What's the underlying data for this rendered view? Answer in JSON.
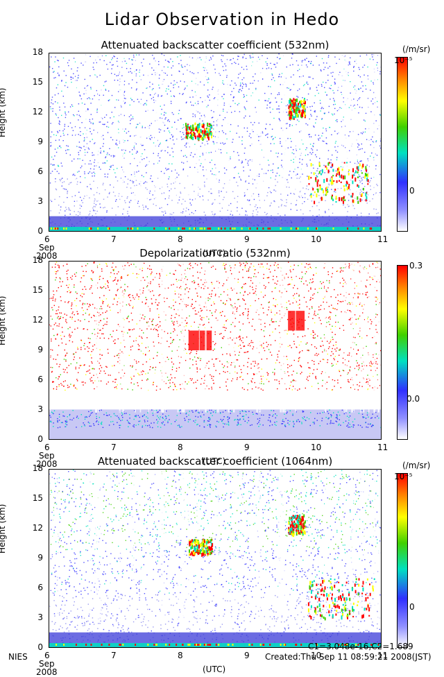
{
  "page": {
    "title": "Lidar Observation in Hedo"
  },
  "x_axis": {
    "ticks": [
      "6",
      "7",
      "8",
      "9",
      "10",
      "11"
    ],
    "start_month": "Sep",
    "start_year": "2008",
    "label": "(UTC)"
  },
  "y_axis": {
    "label": "Height (km)",
    "ticks": [
      "0",
      "3",
      "6",
      "9",
      "12",
      "15",
      "18"
    ]
  },
  "panels": [
    {
      "title": "Attenuated backscatter coefficient (532nm)",
      "cb_top": "10⁻⁵",
      "cb_bottom": "0",
      "cb_unit": "(/m/sr)"
    },
    {
      "title": "Depolarization ratio (532nm)",
      "cb_top": "0.3",
      "cb_bottom": "0.0",
      "cb_unit": ""
    },
    {
      "title": "Attenuated backscatter coefficient (1064nm)",
      "cb_top": "10⁻⁵",
      "cb_bottom": "0",
      "cb_unit": "(/m/sr)"
    }
  ],
  "footer": {
    "org": "NIES",
    "constants": "C1=3.048e-16,C2=1.689",
    "created": "Created:Thu Sep 11 08:59:21 2008(JST)"
  },
  "colors": {
    "low": "#3030ff",
    "mid": "#00e0c0",
    "green": "#40d000",
    "yellow": "#ffff00",
    "high": "#ff0000"
  },
  "chart_data": [
    {
      "type": "heatmap",
      "title": "Attenuated backscatter coefficient (532nm)",
      "ylabel": "Height (km)",
      "xlabel": "(UTC)",
      "x_range": [
        "6 Sep 2008",
        "11 Sep 2008"
      ],
      "ylim": [
        0,
        18
      ],
      "colorbar": {
        "range": [
          0,
          1e-05
        ],
        "unit": "(/m/sr)"
      },
      "features": [
        {
          "name": "boundary layer",
          "x_start": 6.0,
          "x_end": 11.0,
          "height_km": [
            0,
            1.5
          ],
          "level": "medium"
        },
        {
          "name": "cloud",
          "x_start": 8.05,
          "x_end": 8.45,
          "height_km": [
            9.5,
            11
          ],
          "level": "high"
        },
        {
          "name": "cloud",
          "x_start": 9.6,
          "x_end": 9.85,
          "height_km": [
            11.5,
            13.5
          ],
          "level": "high"
        },
        {
          "name": "low cloud",
          "x_start": 9.9,
          "x_end": 10.8,
          "height_km": [
            3,
            7
          ],
          "level": "high"
        }
      ]
    },
    {
      "type": "heatmap",
      "title": "Depolarization ratio (532nm)",
      "ylabel": "Height (km)",
      "xlabel": "(UTC)",
      "x_range": [
        "6 Sep 2008",
        "11 Sep 2008"
      ],
      "ylim": [
        0,
        18
      ],
      "colorbar": {
        "range": [
          0.0,
          0.3
        ],
        "unit": ""
      },
      "features": [
        {
          "name": "low depolarization layer",
          "x_start": 6.0,
          "x_end": 11.0,
          "height_km": [
            0,
            3
          ],
          "level": "low"
        },
        {
          "name": "noise",
          "x_start": 6.0,
          "x_end": 11.0,
          "height_km": [
            5,
            18
          ],
          "level": "high"
        },
        {
          "name": "cloud",
          "x_start": 8.1,
          "x_end": 8.45,
          "height_km": [
            9,
            11
          ],
          "level": "high"
        },
        {
          "name": "cloud",
          "x_start": 9.6,
          "x_end": 9.85,
          "height_km": [
            11,
            13
          ],
          "level": "high"
        }
      ]
    },
    {
      "type": "heatmap",
      "title": "Attenuated backscatter coefficient (1064nm)",
      "ylabel": "Height (km)",
      "xlabel": "(UTC)",
      "x_range": [
        "6 Sep 2008",
        "11 Sep 2008"
      ],
      "ylim": [
        0,
        18
      ],
      "colorbar": {
        "range": [
          0,
          1e-05
        ],
        "unit": "(/m/sr)"
      },
      "features": [
        {
          "name": "boundary layer",
          "x_start": 6.0,
          "x_end": 11.0,
          "height_km": [
            0,
            1.5
          ],
          "level": "medium"
        },
        {
          "name": "cloud",
          "x_start": 8.1,
          "x_end": 8.45,
          "height_km": [
            9.5,
            11
          ],
          "level": "high"
        },
        {
          "name": "cloud",
          "x_start": 9.6,
          "x_end": 9.85,
          "height_km": [
            11.5,
            13.5
          ],
          "level": "high"
        },
        {
          "name": "low cloud",
          "x_start": 9.9,
          "x_end": 10.9,
          "height_km": [
            3,
            7
          ],
          "level": "high"
        }
      ]
    }
  ]
}
